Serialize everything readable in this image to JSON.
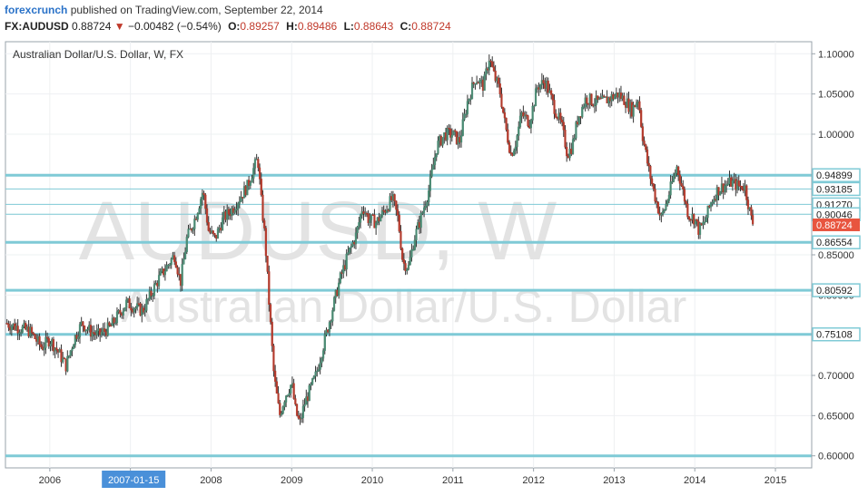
{
  "header": {
    "brand": "forexcrunch",
    "published_text": "published on TradingView.com, September 22, 2014",
    "symbol": "FX:AUDUSD",
    "last": "0.88724",
    "change_arrow": "▼",
    "change": "−0.00482 (−0.54%)",
    "open_label": "O:",
    "open": "0.89257",
    "high_label": "H:",
    "high": "0.89486",
    "low_label": "L:",
    "low": "0.88643",
    "close_label": "C:",
    "close": "0.88724"
  },
  "chart_data": {
    "type": "candlestick",
    "title": "Australian Dollar/U.S. Dollar, W, FX",
    "watermark_symbol": "AUDUSD, W",
    "watermark_name": "Australian Dollar/U.S. Dollar",
    "x_ticks": [
      "2006",
      "2007",
      "2008",
      "2009",
      "2010",
      "2011",
      "2012",
      "2013",
      "2014",
      "2015"
    ],
    "x_highlight": {
      "label": "2007-01-15",
      "date": 2007.04
    },
    "xlim": [
      2005.45,
      2015.45
    ],
    "ylim": [
      0.585,
      1.115
    ],
    "y_ticks": [
      0.6,
      0.65,
      0.7,
      0.75,
      0.8,
      0.85,
      0.9,
      0.95,
      1.0,
      1.05,
      1.1
    ],
    "y_tick_labels": [
      "0.60000",
      "0.65000",
      "0.70000",
      "0.75000",
      "0.80000",
      "0.85000",
      "0.90000",
      "0.95000",
      "1.00000",
      "1.05000",
      "1.10000"
    ],
    "horizontal_levels": [
      {
        "value": 0.94899,
        "label": "0.94899",
        "style": "thick"
      },
      {
        "value": 0.93185,
        "label": "0.93185",
        "style": "thin"
      },
      {
        "value": 0.9127,
        "label": "0.91270",
        "style": "thin"
      },
      {
        "value": 0.90046,
        "label": "0.90046",
        "style": "thin"
      },
      {
        "value": 0.86554,
        "label": "0.86554",
        "style": "thick"
      },
      {
        "value": 0.80592,
        "label": "0.80592",
        "style": "thick"
      },
      {
        "value": 0.75108,
        "label": "0.75108",
        "style": "thick"
      },
      {
        "value": 0.6,
        "label": "",
        "style": "thick"
      }
    ],
    "last_price": {
      "value": 0.88724,
      "label": "0.88724"
    },
    "price_path": [
      [
        2005.45,
        0.765
      ],
      [
        2005.6,
        0.76
      ],
      [
        2005.75,
        0.755
      ],
      [
        2005.9,
        0.735
      ],
      [
        2006.0,
        0.745
      ],
      [
        2006.1,
        0.73
      ],
      [
        2006.2,
        0.712
      ],
      [
        2006.3,
        0.745
      ],
      [
        2006.4,
        0.765
      ],
      [
        2006.5,
        0.755
      ],
      [
        2006.6,
        0.75
      ],
      [
        2006.75,
        0.76
      ],
      [
        2006.85,
        0.775
      ],
      [
        2006.95,
        0.79
      ],
      [
        2007.05,
        0.785
      ],
      [
        2007.15,
        0.78
      ],
      [
        2007.25,
        0.8
      ],
      [
        2007.35,
        0.82
      ],
      [
        2007.45,
        0.835
      ],
      [
        2007.55,
        0.85
      ],
      [
        2007.62,
        0.815
      ],
      [
        2007.7,
        0.87
      ],
      [
        2007.8,
        0.895
      ],
      [
        2007.9,
        0.93
      ],
      [
        2007.97,
        0.88
      ],
      [
        2008.05,
        0.87
      ],
      [
        2008.15,
        0.895
      ],
      [
        2008.25,
        0.905
      ],
      [
        2008.35,
        0.92
      ],
      [
        2008.45,
        0.935
      ],
      [
        2008.52,
        0.955
      ],
      [
        2008.58,
        0.97
      ],
      [
        2008.62,
        0.92
      ],
      [
        2008.67,
        0.87
      ],
      [
        2008.72,
        0.79
      ],
      [
        2008.78,
        0.7
      ],
      [
        2008.85,
        0.65
      ],
      [
        2008.92,
        0.675
      ],
      [
        2009.0,
        0.69
      ],
      [
        2009.05,
        0.655
      ],
      [
        2009.1,
        0.64
      ],
      [
        2009.16,
        0.665
      ],
      [
        2009.22,
        0.68
      ],
      [
        2009.3,
        0.7
      ],
      [
        2009.4,
        0.74
      ],
      [
        2009.5,
        0.78
      ],
      [
        2009.6,
        0.82
      ],
      [
        2009.7,
        0.85
      ],
      [
        2009.8,
        0.875
      ],
      [
        2009.88,
        0.91
      ],
      [
        2009.95,
        0.895
      ],
      [
        2010.05,
        0.89
      ],
      [
        2010.15,
        0.905
      ],
      [
        2010.25,
        0.92
      ],
      [
        2010.32,
        0.895
      ],
      [
        2010.38,
        0.84
      ],
      [
        2010.45,
        0.835
      ],
      [
        2010.52,
        0.87
      ],
      [
        2010.6,
        0.895
      ],
      [
        2010.7,
        0.93
      ],
      [
        2010.8,
        0.985
      ],
      [
        2010.9,
        1.0
      ],
      [
        2011.0,
        1.0
      ],
      [
        2011.08,
        0.99
      ],
      [
        2011.18,
        1.04
      ],
      [
        2011.28,
        1.07
      ],
      [
        2011.38,
        1.06
      ],
      [
        2011.45,
        1.095
      ],
      [
        2011.52,
        1.07
      ],
      [
        2011.58,
        1.055
      ],
      [
        2011.65,
        1.01
      ],
      [
        2011.72,
        0.975
      ],
      [
        2011.78,
        0.99
      ],
      [
        2011.85,
        1.025
      ],
      [
        2011.95,
        1.015
      ],
      [
        2012.05,
        1.06
      ],
      [
        2012.15,
        1.065
      ],
      [
        2012.25,
        1.035
      ],
      [
        2012.35,
        1.01
      ],
      [
        2012.42,
        0.975
      ],
      [
        2012.48,
        0.985
      ],
      [
        2012.55,
        1.02
      ],
      [
        2012.65,
        1.045
      ],
      [
        2012.75,
        1.04
      ],
      [
        2012.85,
        1.04
      ],
      [
        2012.95,
        1.045
      ],
      [
        2013.05,
        1.05
      ],
      [
        2013.15,
        1.04
      ],
      [
        2013.22,
        1.03
      ],
      [
        2013.3,
        1.045
      ],
      [
        2013.35,
        1.0
      ],
      [
        2013.42,
        0.96
      ],
      [
        2013.5,
        0.925
      ],
      [
        2013.58,
        0.895
      ],
      [
        2013.65,
        0.915
      ],
      [
        2013.72,
        0.94
      ],
      [
        2013.78,
        0.96
      ],
      [
        2013.85,
        0.93
      ],
      [
        2013.92,
        0.9
      ],
      [
        2014.0,
        0.895
      ],
      [
        2014.05,
        0.88
      ],
      [
        2014.12,
        0.89
      ],
      [
        2014.2,
        0.915
      ],
      [
        2014.28,
        0.93
      ],
      [
        2014.35,
        0.935
      ],
      [
        2014.45,
        0.94
      ],
      [
        2014.55,
        0.935
      ],
      [
        2014.62,
        0.935
      ],
      [
        2014.66,
        0.915
      ],
      [
        2014.7,
        0.895
      ],
      [
        2014.73,
        0.887
      ]
    ]
  }
}
